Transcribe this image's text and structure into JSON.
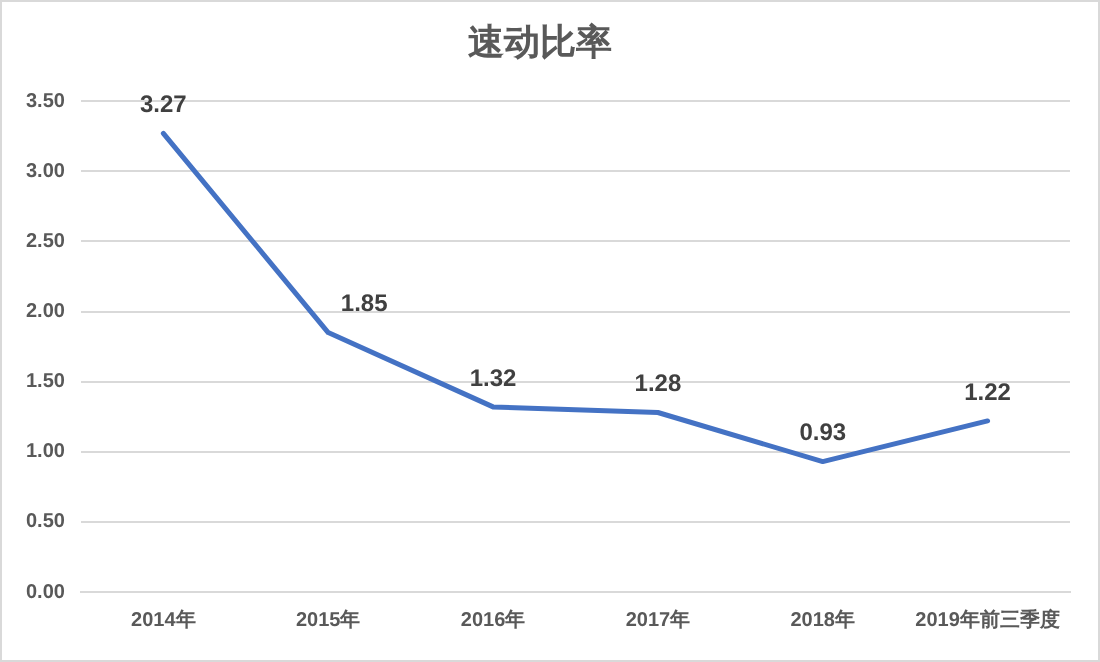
{
  "chart_data": {
    "type": "line",
    "title": "速动比率",
    "categories": [
      "2014年",
      "2015年",
      "2016年",
      "2017年",
      "2018年",
      "2019年前三季度"
    ],
    "series": [
      {
        "color": "#4472c4",
        "values": [
          3.27,
          1.85,
          1.32,
          1.28,
          0.93,
          1.22
        ]
      }
    ],
    "ylim": [
      0,
      3.5
    ],
    "yticks": [
      {
        "value": 0,
        "label": "0.00"
      },
      {
        "value": 0.5,
        "label": "0.50"
      },
      {
        "value": 1,
        "label": "1.00"
      },
      {
        "value": 1.5,
        "label": "1.50"
      },
      {
        "value": 2,
        "label": "2.00"
      },
      {
        "value": 2.5,
        "label": "2.50"
      },
      {
        "value": 3,
        "label": "3.00"
      },
      {
        "value": 3.5,
        "label": "3.50"
      }
    ],
    "grid": "y",
    "legend": false,
    "marker": "none",
    "line_style": "solid",
    "data_labels": true
  }
}
